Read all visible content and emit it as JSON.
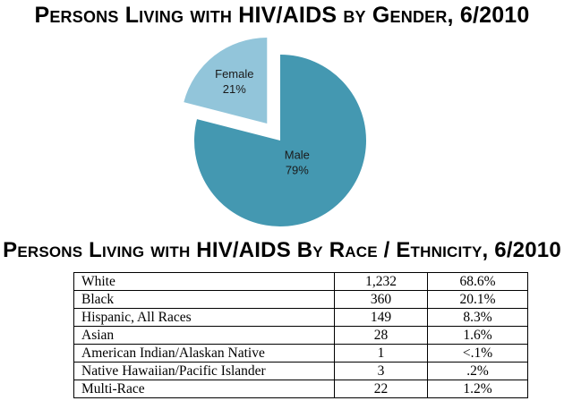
{
  "gender": {
    "title": "Persons Living with HIV/AIDS by Gender, 6/2010"
  },
  "race": {
    "title": "Persons Living with HIV/AIDS By Race / Ethnicity, 6/2010",
    "rows": [
      {
        "label": "White",
        "count": "1,232",
        "percent": "68.6%"
      },
      {
        "label": "Black",
        "count": "360",
        "percent": "20.1%"
      },
      {
        "label": "Hispanic, All Races",
        "count": "149",
        "percent": "8.3%"
      },
      {
        "label": "Asian",
        "count": "28",
        "percent": "1.6%"
      },
      {
        "label": "American Indian/Alaskan Native",
        "count": "1",
        "percent": "<.1%"
      },
      {
        "label": "Native Hawaiian/Pacific Islander",
        "count": "3",
        "percent": ".2%"
      },
      {
        "label": "Multi-Race",
        "count": "22",
        "percent": "1.2%"
      }
    ]
  },
  "chart_data": {
    "type": "pie",
    "title": "Persons Living with HIV/AIDS by Gender, 6/2010",
    "slices": [
      {
        "label": "Female",
        "value": 21,
        "value_label": "21%",
        "color": "#92c5da",
        "exploded": true
      },
      {
        "label": "Male",
        "value": 79,
        "value_label": "79%",
        "color": "#4498b1",
        "exploded": false
      }
    ]
  }
}
